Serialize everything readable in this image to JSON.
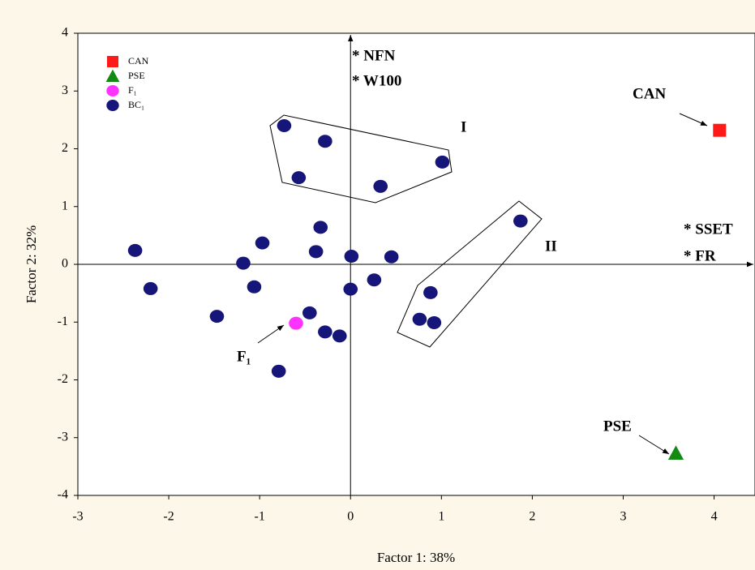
{
  "chart_data": {
    "type": "scatter",
    "x_label": "Factor 1: 38%",
    "y_label": "Factor 2: 32%",
    "xlim": [
      -3,
      4.45
    ],
    "ylim": [
      -4,
      4
    ],
    "xticks": [
      -3,
      -2,
      -1,
      0,
      1,
      2,
      3,
      4
    ],
    "yticks": [
      -4,
      -3,
      -2,
      -1,
      0,
      1,
      2,
      3,
      4
    ],
    "series": [
      {
        "name": "CAN",
        "color": "#ff1a1a",
        "marker": "square",
        "x": [
          4.06
        ],
        "values": [
          2.32
        ]
      },
      {
        "name": "PSE",
        "color": "#138a13",
        "marker": "triangle",
        "x": [
          3.58
        ],
        "values": [
          -3.27
        ]
      },
      {
        "name": "F₁",
        "color": "#ff33ff",
        "marker": "circle",
        "x": [
          -0.6
        ],
        "values": [
          -1.02
        ]
      },
      {
        "name": "BC₁",
        "color": "#15157a",
        "marker": "circle",
        "x": [
          -0.73,
          -0.28,
          -0.57,
          0.33,
          1.01,
          1.87,
          -0.33,
          -0.97,
          -0.38,
          0.01,
          0.45,
          -1.18,
          -2.37,
          -2.2,
          -1.06,
          0.26,
          0.0,
          0.88,
          -1.47,
          -0.45,
          -0.28,
          -0.12,
          0.76,
          0.92,
          -0.79
        ],
        "values": [
          2.4,
          2.13,
          1.5,
          1.35,
          1.77,
          0.75,
          0.64,
          0.37,
          0.22,
          0.14,
          0.13,
          0.02,
          0.24,
          -0.42,
          -0.39,
          -0.27,
          -0.43,
          -0.49,
          -0.9,
          -0.84,
          -1.17,
          -1.24,
          -0.95,
          -1.01,
          -1.85
        ]
      }
    ],
    "annotations": [
      "* NFN",
      "* W100",
      "* SSET",
      "* FR",
      "CAN",
      "PSE",
      "F₁",
      "I",
      "II"
    ]
  }
}
